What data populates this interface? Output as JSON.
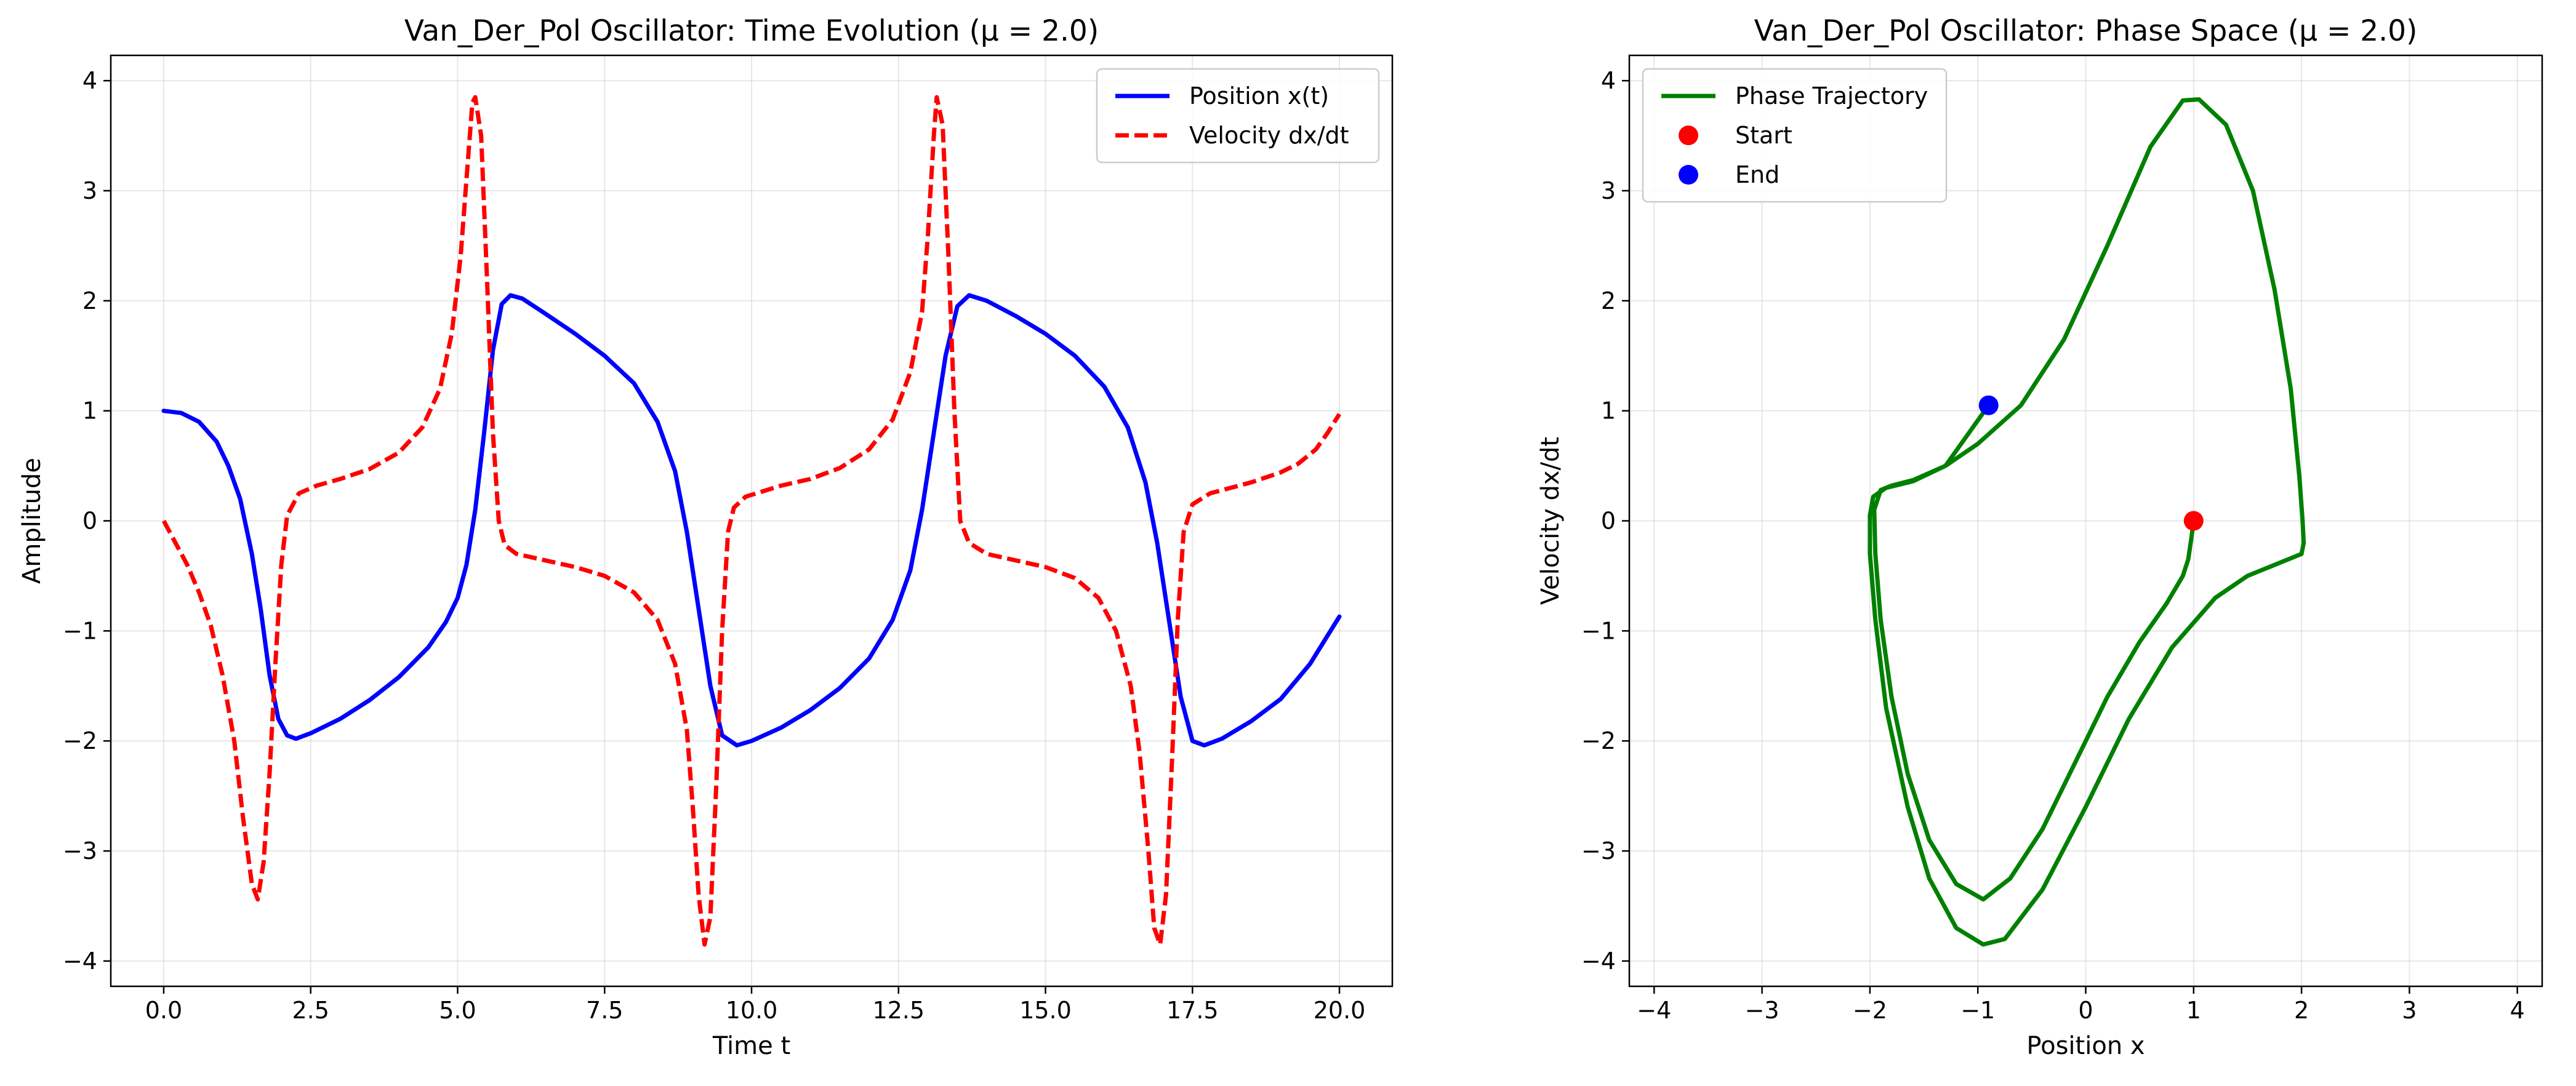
{
  "chart_data": [
    {
      "type": "line",
      "title": "Van_Der_Pol Oscillator: Time Evolution (μ = 2.0)",
      "xlabel": "Time t",
      "ylabel": "Amplitude",
      "xlim": [
        -0.9,
        20.9
      ],
      "ylim": [
        -4.23,
        4.23
      ],
      "xticks": [
        0,
        2.5,
        5,
        7.5,
        10,
        12.5,
        15,
        17.5,
        20
      ],
      "xtick_labels": [
        "0.0",
        "2.5",
        "5.0",
        "7.5",
        "10.0",
        "12.5",
        "15.0",
        "17.5",
        "20.0"
      ],
      "yticks": [
        -4,
        -3,
        -2,
        -1,
        0,
        1,
        2,
        3,
        4
      ],
      "ytick_labels": [
        "−4",
        "−3",
        "−2",
        "−1",
        "0",
        "1",
        "2",
        "3",
        "4"
      ],
      "grid": true,
      "legend_position": "top-right",
      "series": [
        {
          "name": "Position x(t)",
          "color": "#0000ff",
          "style": "solid",
          "points": [
            [
              0,
              1.0
            ],
            [
              0.3,
              0.98
            ],
            [
              0.6,
              0.9
            ],
            [
              0.9,
              0.72
            ],
            [
              1.1,
              0.5
            ],
            [
              1.3,
              0.2
            ],
            [
              1.5,
              -0.3
            ],
            [
              1.65,
              -0.8
            ],
            [
              1.8,
              -1.4
            ],
            [
              1.95,
              -1.8
            ],
            [
              2.1,
              -1.95
            ],
            [
              2.25,
              -1.98
            ],
            [
              2.5,
              -1.93
            ],
            [
              3.0,
              -1.8
            ],
            [
              3.5,
              -1.63
            ],
            [
              4.0,
              -1.42
            ],
            [
              4.5,
              -1.15
            ],
            [
              4.8,
              -0.92
            ],
            [
              5.0,
              -0.7
            ],
            [
              5.15,
              -0.4
            ],
            [
              5.3,
              0.1
            ],
            [
              5.45,
              0.8
            ],
            [
              5.6,
              1.55
            ],
            [
              5.75,
              1.97
            ],
            [
              5.9,
              2.05
            ],
            [
              6.1,
              2.02
            ],
            [
              6.5,
              1.88
            ],
            [
              7.0,
              1.7
            ],
            [
              7.5,
              1.5
            ],
            [
              8.0,
              1.25
            ],
            [
              8.4,
              0.9
            ],
            [
              8.7,
              0.45
            ],
            [
              8.9,
              -0.1
            ],
            [
              9.1,
              -0.8
            ],
            [
              9.3,
              -1.5
            ],
            [
              9.5,
              -1.95
            ],
            [
              9.75,
              -2.04
            ],
            [
              10.0,
              -2.0
            ],
            [
              10.5,
              -1.88
            ],
            [
              11.0,
              -1.72
            ],
            [
              11.5,
              -1.52
            ],
            [
              12.0,
              -1.25
            ],
            [
              12.4,
              -0.9
            ],
            [
              12.7,
              -0.45
            ],
            [
              12.9,
              0.1
            ],
            [
              13.1,
              0.8
            ],
            [
              13.3,
              1.5
            ],
            [
              13.5,
              1.95
            ],
            [
              13.7,
              2.05
            ],
            [
              14.0,
              2.0
            ],
            [
              14.5,
              1.86
            ],
            [
              15.0,
              1.7
            ],
            [
              15.5,
              1.5
            ],
            [
              16.0,
              1.22
            ],
            [
              16.4,
              0.85
            ],
            [
              16.7,
              0.35
            ],
            [
              16.9,
              -0.2
            ],
            [
              17.1,
              -0.9
            ],
            [
              17.3,
              -1.6
            ],
            [
              17.5,
              -2.0
            ],
            [
              17.7,
              -2.04
            ],
            [
              18.0,
              -1.98
            ],
            [
              18.5,
              -1.82
            ],
            [
              19.0,
              -1.62
            ],
            [
              19.5,
              -1.3
            ],
            [
              20.0,
              -0.87
            ]
          ]
        },
        {
          "name": "Velocity dx/dt",
          "color": "#ff0000",
          "style": "dashed",
          "points": [
            [
              0,
              0.0
            ],
            [
              0.2,
              -0.2
            ],
            [
              0.4,
              -0.4
            ],
            [
              0.6,
              -0.65
            ],
            [
              0.8,
              -0.95
            ],
            [
              1.0,
              -1.4
            ],
            [
              1.2,
              -2.0
            ],
            [
              1.35,
              -2.7
            ],
            [
              1.5,
              -3.3
            ],
            [
              1.6,
              -3.44
            ],
            [
              1.7,
              -3.1
            ],
            [
              1.8,
              -2.3
            ],
            [
              1.9,
              -1.3
            ],
            [
              2.0,
              -0.4
            ],
            [
              2.1,
              0.05
            ],
            [
              2.3,
              0.25
            ],
            [
              2.6,
              0.32
            ],
            [
              3.0,
              0.38
            ],
            [
              3.5,
              0.47
            ],
            [
              4.0,
              0.62
            ],
            [
              4.4,
              0.85
            ],
            [
              4.7,
              1.2
            ],
            [
              4.9,
              1.7
            ],
            [
              5.05,
              2.4
            ],
            [
              5.15,
              3.1
            ],
            [
              5.25,
              3.8
            ],
            [
              5.3,
              3.85
            ],
            [
              5.4,
              3.5
            ],
            [
              5.5,
              2.2
            ],
            [
              5.6,
              0.8
            ],
            [
              5.7,
              0.0
            ],
            [
              5.8,
              -0.22
            ],
            [
              6.0,
              -0.3
            ],
            [
              6.5,
              -0.36
            ],
            [
              7.0,
              -0.42
            ],
            [
              7.5,
              -0.5
            ],
            [
              8.0,
              -0.65
            ],
            [
              8.4,
              -0.9
            ],
            [
              8.7,
              -1.3
            ],
            [
              8.9,
              -1.9
            ],
            [
              9.0,
              -2.6
            ],
            [
              9.1,
              -3.4
            ],
            [
              9.2,
              -3.85
            ],
            [
              9.3,
              -3.6
            ],
            [
              9.4,
              -2.4
            ],
            [
              9.5,
              -1.0
            ],
            [
              9.6,
              -0.1
            ],
            [
              9.7,
              0.12
            ],
            [
              9.9,
              0.22
            ],
            [
              10.5,
              0.32
            ],
            [
              11.0,
              0.38
            ],
            [
              11.5,
              0.48
            ],
            [
              12.0,
              0.65
            ],
            [
              12.4,
              0.92
            ],
            [
              12.7,
              1.35
            ],
            [
              12.9,
              1.9
            ],
            [
              13.0,
              2.6
            ],
            [
              13.1,
              3.5
            ],
            [
              13.15,
              3.85
            ],
            [
              13.25,
              3.6
            ],
            [
              13.35,
              2.4
            ],
            [
              13.45,
              1.0
            ],
            [
              13.55,
              0.0
            ],
            [
              13.7,
              -0.2
            ],
            [
              14.0,
              -0.3
            ],
            [
              14.5,
              -0.36
            ],
            [
              15.0,
              -0.42
            ],
            [
              15.5,
              -0.52
            ],
            [
              15.9,
              -0.7
            ],
            [
              16.2,
              -1.0
            ],
            [
              16.45,
              -1.5
            ],
            [
              16.6,
              -2.1
            ],
            [
              16.75,
              -3.0
            ],
            [
              16.85,
              -3.7
            ],
            [
              16.95,
              -3.85
            ],
            [
              17.05,
              -3.4
            ],
            [
              17.15,
              -2.2
            ],
            [
              17.25,
              -0.9
            ],
            [
              17.35,
              -0.1
            ],
            [
              17.5,
              0.15
            ],
            [
              17.8,
              0.25
            ],
            [
              18.5,
              0.35
            ],
            [
              19.0,
              0.44
            ],
            [
              19.3,
              0.52
            ],
            [
              19.6,
              0.65
            ],
            [
              19.8,
              0.8
            ],
            [
              20.0,
              0.97
            ]
          ]
        }
      ]
    },
    {
      "type": "line",
      "title": "Van_Der_Pol Oscillator: Phase Space (μ = 2.0)",
      "xlabel": "Position x",
      "ylabel": "Velocity dx/dt",
      "xlim": [
        -4.23,
        4.23
      ],
      "ylim": [
        -4.23,
        4.23
      ],
      "xticks": [
        -4,
        -3,
        -2,
        -1,
        0,
        1,
        2,
        3,
        4
      ],
      "xtick_labels": [
        "−4",
        "−3",
        "−2",
        "−1",
        "0",
        "1",
        "2",
        "3",
        "4"
      ],
      "yticks": [
        -4,
        -3,
        -2,
        -1,
        0,
        1,
        2,
        3,
        4
      ],
      "ytick_labels": [
        "−4",
        "−3",
        "−2",
        "−1",
        "0",
        "1",
        "2",
        "3",
        "4"
      ],
      "grid": true,
      "legend_position": "top-left",
      "series": [
        {
          "name": "Phase Trajectory",
          "color": "#008000",
          "style": "solid",
          "points": [
            [
              1.0,
              0.0
            ],
            [
              0.98,
              -0.15
            ],
            [
              0.95,
              -0.35
            ],
            [
              0.9,
              -0.5
            ],
            [
              0.75,
              -0.75
            ],
            [
              0.5,
              -1.1
            ],
            [
              0.2,
              -1.6
            ],
            [
              -0.1,
              -2.2
            ],
            [
              -0.4,
              -2.8
            ],
            [
              -0.7,
              -3.25
            ],
            [
              -0.95,
              -3.44
            ],
            [
              -1.2,
              -3.3
            ],
            [
              -1.45,
              -2.9
            ],
            [
              -1.65,
              -2.3
            ],
            [
              -1.8,
              -1.6
            ],
            [
              -1.9,
              -0.9
            ],
            [
              -1.95,
              -0.3
            ],
            [
              -1.96,
              0.1
            ],
            [
              -1.9,
              0.28
            ],
            [
              -1.8,
              0.32
            ],
            [
              -1.6,
              0.37
            ],
            [
              -1.3,
              0.5
            ],
            [
              -1.0,
              0.7
            ],
            [
              -0.6,
              1.05
            ],
            [
              -0.2,
              1.65
            ],
            [
              0.2,
              2.5
            ],
            [
              0.6,
              3.4
            ],
            [
              0.9,
              3.82
            ],
            [
              1.05,
              3.83
            ],
            [
              1.3,
              3.6
            ],
            [
              1.55,
              3.0
            ],
            [
              1.75,
              2.1
            ],
            [
              1.9,
              1.2
            ],
            [
              1.98,
              0.4
            ],
            [
              2.01,
              0.0
            ],
            [
              2.02,
              -0.2
            ],
            [
              2.0,
              -0.3
            ],
            [
              1.8,
              -0.38
            ],
            [
              1.5,
              -0.5
            ],
            [
              1.2,
              -0.7
            ],
            [
              0.8,
              -1.15
            ],
            [
              0.4,
              -1.8
            ],
            [
              0.0,
              -2.6
            ],
            [
              -0.4,
              -3.35
            ],
            [
              -0.75,
              -3.8
            ],
            [
              -0.95,
              -3.85
            ],
            [
              -1.2,
              -3.7
            ],
            [
              -1.45,
              -3.25
            ],
            [
              -1.65,
              -2.6
            ],
            [
              -1.85,
              -1.7
            ],
            [
              -1.95,
              -0.9
            ],
            [
              -2.0,
              -0.3
            ],
            [
              -2.0,
              0.05
            ],
            [
              -1.97,
              0.22
            ],
            [
              -1.85,
              0.3
            ],
            [
              -1.6,
              0.36
            ],
            [
              -1.3,
              0.5
            ],
            [
              -0.9,
              1.05
            ]
          ]
        }
      ],
      "markers": [
        {
          "name": "Start",
          "color": "#ff0000",
          "x": 1.0,
          "y": 0.0
        },
        {
          "name": "End",
          "color": "#0000ff",
          "x": -0.9,
          "y": 1.05
        }
      ]
    }
  ]
}
